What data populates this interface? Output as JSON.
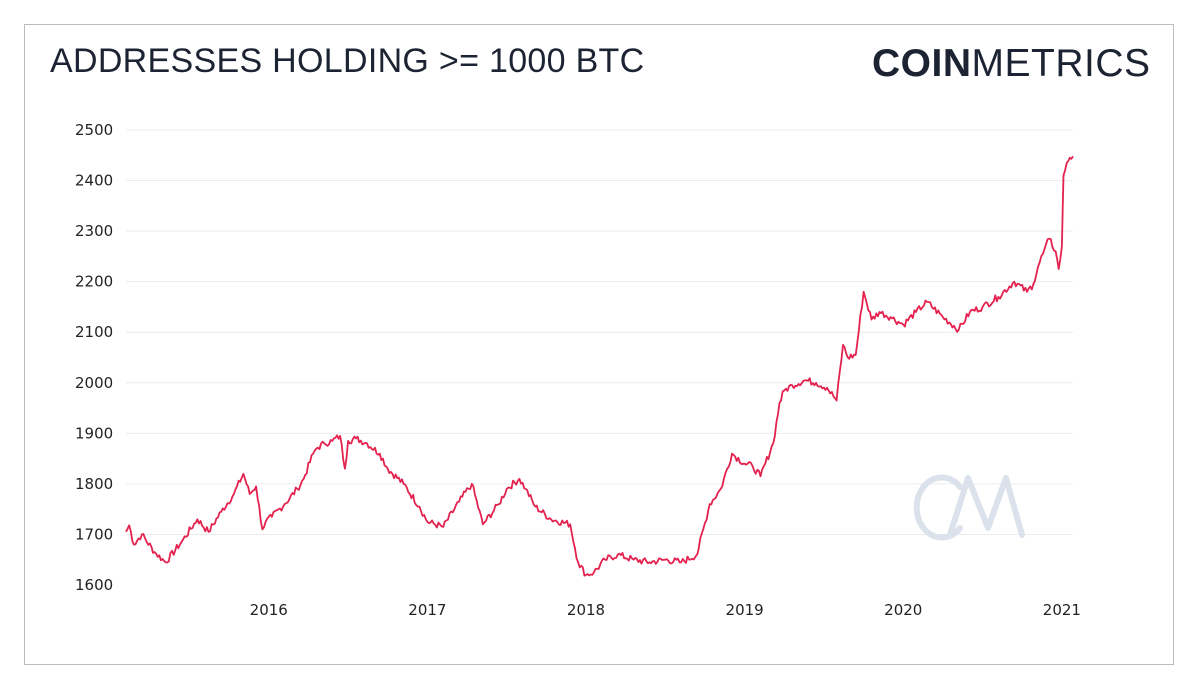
{
  "header": {
    "title": "ADDRESSES HOLDING >= 1000 BTC",
    "logo_bold": "COIN",
    "logo_light": "METRICS"
  },
  "colors": {
    "line": "#e3224f",
    "text": "#1c2333",
    "grid": "#ececec",
    "watermark": "#dbe2ec"
  },
  "chart_data": {
    "type": "line",
    "title": "ADDRESSES HOLDING >= 1000 BTC",
    "xlabel": "",
    "ylabel": "",
    "ylim": [
      1600,
      2500
    ],
    "xlim": [
      2015.1,
      2021.07
    ],
    "y_ticks": [
      1600,
      1700,
      1800,
      1900,
      2000,
      2100,
      2200,
      2300,
      2400,
      2500
    ],
    "x_ticks": [
      2016,
      2017,
      2018,
      2019,
      2020,
      2021
    ],
    "x_tick_labels": [
      "2016",
      "2017",
      "2018",
      "2019",
      "2020",
      "2021"
    ],
    "grid": true,
    "legend": "none",
    "series": [
      {
        "name": "Addresses holding >= 1000 BTC",
        "x": [
          2015.1,
          2015.12,
          2015.15,
          2015.2,
          2015.28,
          2015.35,
          2015.45,
          2015.55,
          2015.62,
          2015.7,
          2015.78,
          2015.84,
          2015.88,
          2015.92,
          2015.96,
          2015.98,
          2016.02,
          2016.1,
          2016.18,
          2016.22,
          2016.28,
          2016.3,
          2016.35,
          2016.4,
          2016.45,
          2016.48,
          2016.5,
          2016.55,
          2016.62,
          2016.7,
          2016.75,
          2016.85,
          2016.95,
          2017.0,
          2017.1,
          2017.2,
          2017.28,
          2017.35,
          2017.45,
          2017.5,
          2017.58,
          2017.62,
          2017.68,
          2017.78,
          2017.9,
          2017.95,
          2018.0,
          2018.05,
          2018.12,
          2018.2,
          2018.3,
          2018.4,
          2018.5,
          2018.6,
          2018.7,
          2018.78,
          2018.85,
          2018.92,
          2019.0,
          2019.05,
          2019.1,
          2019.18,
          2019.22,
          2019.25,
          2019.3,
          2019.38,
          2019.45,
          2019.52,
          2019.58,
          2019.62,
          2019.65,
          2019.7,
          2019.75,
          2019.8,
          2019.85,
          2019.92,
          2020.0,
          2020.08,
          2020.15,
          2020.25,
          2020.35,
          2020.42,
          2020.5,
          2020.6,
          2020.7,
          2020.78,
          2020.82,
          2020.85,
          2020.88,
          2020.92,
          2020.96,
          2020.98,
          2021.0,
          2021.01,
          2021.03,
          2021.05,
          2021.07
        ],
        "values": [
          1705,
          1718,
          1680,
          1700,
          1665,
          1645,
          1685,
          1730,
          1705,
          1745,
          1780,
          1820,
          1780,
          1795,
          1710,
          1725,
          1735,
          1760,
          1790,
          1810,
          1860,
          1870,
          1880,
          1885,
          1895,
          1830,
          1885,
          1890,
          1880,
          1860,
          1830,
          1800,
          1755,
          1725,
          1715,
          1765,
          1800,
          1720,
          1760,
          1790,
          1810,
          1790,
          1755,
          1730,
          1720,
          1645,
          1620,
          1625,
          1650,
          1660,
          1650,
          1645,
          1650,
          1645,
          1660,
          1760,
          1790,
          1860,
          1840,
          1835,
          1815,
          1880,
          1960,
          1985,
          1995,
          2005,
          2000,
          1990,
          1965,
          2075,
          2050,
          2055,
          2180,
          2125,
          2140,
          2130,
          2115,
          2140,
          2160,
          2130,
          2105,
          2140,
          2150,
          2170,
          2200,
          2180,
          2195,
          2230,
          2255,
          2285,
          2260,
          2225,
          2270,
          2410,
          2435,
          2445,
          2448
        ]
      }
    ]
  },
  "watermark": {
    "label": "CM"
  }
}
